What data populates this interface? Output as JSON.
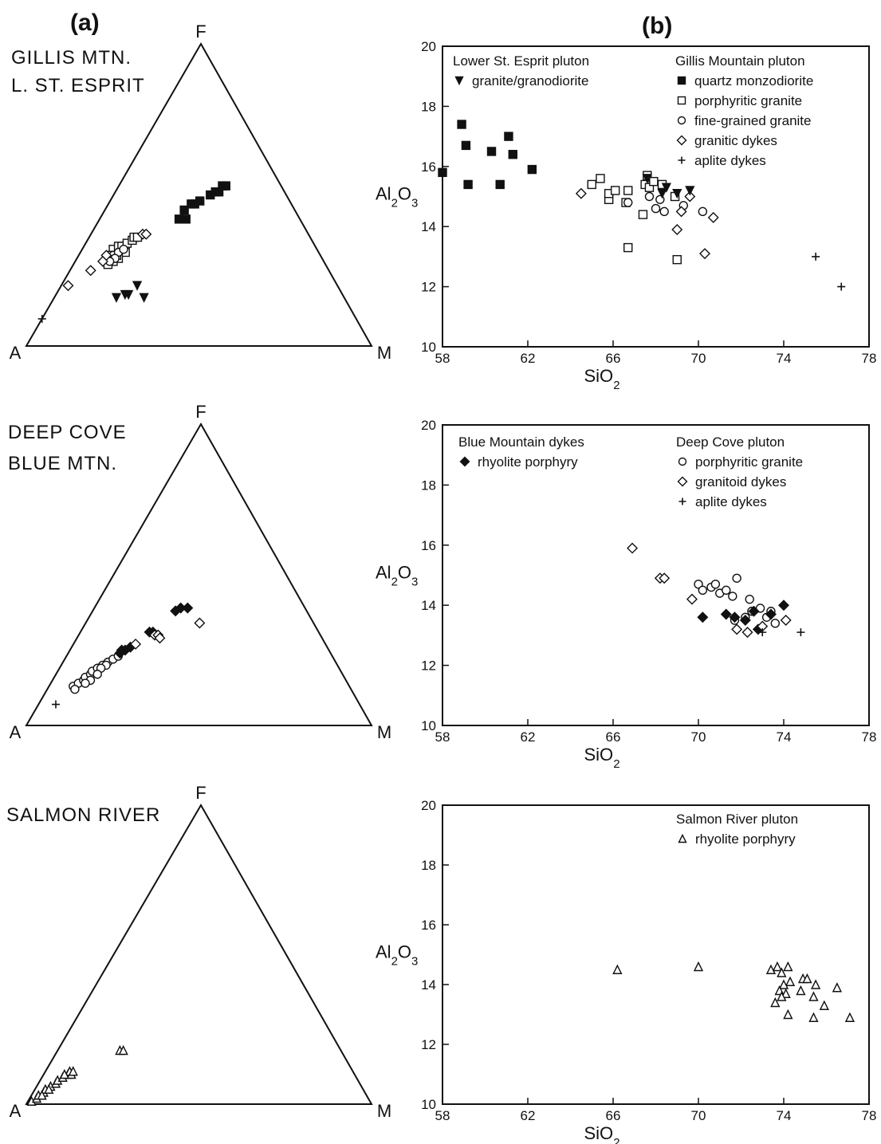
{
  "figure": {
    "panel_a_label": "(a)",
    "panel_b_label": "(b)"
  },
  "colors": {
    "ink": "#111111",
    "background": "#ffffff"
  },
  "chart_data": [
    {
      "type": "ternary",
      "title": "GILLIS MTN. L. ST. ESPRIT",
      "name_lines": [
        "GILLIS MTN.",
        "L. ST. ESPRIT"
      ],
      "apexes": {
        "top": "F",
        "left": "A",
        "right": "M"
      },
      "series": [
        {
          "marker": "filled-square",
          "points": [
            [
              0.25,
              0.42
            ],
            [
              0.23,
              0.42
            ],
            [
              0.23,
              0.45
            ],
            [
              0.24,
              0.47
            ],
            [
              0.25,
              0.47
            ],
            [
              0.26,
              0.48
            ],
            [
              0.28,
              0.5
            ],
            [
              0.29,
              0.51
            ],
            [
              0.3,
              0.51
            ],
            [
              0.3,
              0.53
            ],
            [
              0.31,
              0.53
            ]
          ]
        },
        {
          "marker": "open-square",
          "points": [
            [
              0.09,
              0.32
            ],
            [
              0.1,
              0.33
            ],
            [
              0.11,
              0.33
            ],
            [
              0.12,
              0.34
            ],
            [
              0.13,
              0.35
            ],
            [
              0.13,
              0.36
            ],
            [
              0.14,
              0.36
            ],
            [
              0.13,
              0.31
            ],
            [
              0.12,
              0.29
            ],
            [
              0.11,
              0.28
            ],
            [
              0.1,
              0.27
            ],
            [
              0.1,
              0.29
            ],
            [
              0.11,
              0.3
            ],
            [
              0.09,
              0.3
            ]
          ]
        },
        {
          "marker": "open-circle",
          "points": [
            [
              0.1,
              0.3
            ],
            [
              0.11,
              0.31
            ],
            [
              0.12,
              0.32
            ],
            [
              0.11,
              0.29
            ],
            [
              0.1,
              0.28
            ]
          ]
        },
        {
          "marker": "open-diamond",
          "points": [
            [
              0.06,
              0.25
            ],
            [
              0.02,
              0.2
            ],
            [
              0.08,
              0.3
            ],
            [
              0.08,
              0.28
            ],
            [
              0.15,
              0.37
            ],
            [
              0.16,
              0.37
            ]
          ]
        },
        {
          "marker": "filled-triangle-down",
          "points": [
            [
              0.18,
              0.16
            ],
            [
              0.2,
              0.17
            ],
            [
              0.21,
              0.17
            ],
            [
              0.22,
              0.2
            ],
            [
              0.26,
              0.16
            ]
          ]
        },
        {
          "marker": "plus",
          "points": [
            [
              0.0,
              0.09
            ]
          ]
        }
      ]
    },
    {
      "type": "scatter",
      "xlabel": "SiO2",
      "ylabel": "Al2O3",
      "xlim": [
        58,
        78
      ],
      "ylim": [
        10,
        20
      ],
      "xticks": [
        58,
        62,
        66,
        70,
        74,
        78
      ],
      "yticks": [
        10,
        12,
        14,
        16,
        18,
        20
      ],
      "legend_groups": [
        {
          "heading": "Lower St. Esprit pluton",
          "entries": [
            {
              "marker": "filled-triangle-down",
              "label": "granite/granodiorite"
            }
          ]
        },
        {
          "heading": "Gillis Mountain pluton",
          "entries": [
            {
              "marker": "filled-square",
              "label": "quartz monzodiorite"
            },
            {
              "marker": "open-square",
              "label": "porphyritic granite"
            },
            {
              "marker": "open-circle",
              "label": "fine-grained granite"
            },
            {
              "marker": "open-diamond",
              "label": "granitic dykes"
            },
            {
              "marker": "plus",
              "label": "aplite dykes"
            }
          ]
        }
      ],
      "series": [
        {
          "marker": "filled-square",
          "points": [
            [
              58.0,
              15.8
            ],
            [
              58.9,
              17.4
            ],
            [
              59.1,
              16.7
            ],
            [
              59.2,
              15.4
            ],
            [
              60.3,
              16.5
            ],
            [
              60.7,
              15.4
            ],
            [
              61.1,
              17.0
            ],
            [
              61.3,
              16.4
            ],
            [
              62.2,
              15.9
            ]
          ]
        },
        {
          "marker": "open-square",
          "points": [
            [
              65.0,
              15.4
            ],
            [
              65.4,
              15.6
            ],
            [
              65.8,
              14.9
            ],
            [
              65.8,
              15.1
            ],
            [
              66.1,
              15.2
            ],
            [
              66.6,
              14.8
            ],
            [
              66.7,
              15.2
            ],
            [
              66.7,
              13.3
            ],
            [
              67.4,
              14.4
            ],
            [
              67.5,
              15.4
            ],
            [
              67.6,
              15.7
            ],
            [
              67.7,
              15.3
            ],
            [
              67.9,
              15.5
            ],
            [
              68.3,
              15.4
            ],
            [
              68.9,
              15.0
            ],
            [
              69.0,
              12.9
            ]
          ]
        },
        {
          "marker": "open-circle",
          "points": [
            [
              66.7,
              14.8
            ],
            [
              67.7,
              15.0
            ],
            [
              68.0,
              14.6
            ],
            [
              68.2,
              14.9
            ],
            [
              68.4,
              14.5
            ],
            [
              69.3,
              14.7
            ],
            [
              70.2,
              14.5
            ]
          ]
        },
        {
          "marker": "open-diamond",
          "points": [
            [
              64.5,
              15.1
            ],
            [
              69.0,
              13.9
            ],
            [
              69.2,
              14.5
            ],
            [
              69.6,
              15.0
            ],
            [
              70.3,
              13.1
            ],
            [
              70.7,
              14.3
            ]
          ]
        },
        {
          "marker": "filled-triangle-down",
          "points": [
            [
              67.6,
              15.6
            ],
            [
              68.3,
              15.1
            ],
            [
              68.5,
              15.3
            ],
            [
              69.0,
              15.1
            ],
            [
              69.6,
              15.2
            ]
          ]
        },
        {
          "marker": "plus",
          "points": [
            [
              75.5,
              13.0
            ],
            [
              76.7,
              12.0
            ]
          ]
        }
      ]
    },
    {
      "type": "ternary",
      "title": "DEEP COVE BLUE MTN.",
      "name_lines": [
        "DEEP COVE",
        "BLUE MTN."
      ],
      "apexes": {
        "top": "F",
        "left": "A",
        "right": "M"
      },
      "series": [
        {
          "marker": "open-circle",
          "points": [
            [
              0.07,
              0.13
            ],
            [
              0.08,
              0.14
            ],
            [
              0.09,
              0.15
            ],
            [
              0.09,
              0.16
            ],
            [
              0.1,
              0.17
            ],
            [
              0.1,
              0.18
            ],
            [
              0.11,
              0.19
            ],
            [
              0.12,
              0.2
            ],
            [
              0.13,
              0.21
            ],
            [
              0.14,
              0.22
            ],
            [
              0.13,
              0.2
            ],
            [
              0.12,
              0.19
            ],
            [
              0.12,
              0.17
            ],
            [
              0.15,
              0.23
            ],
            [
              0.11,
              0.15
            ],
            [
              0.08,
              0.12
            ],
            [
              0.1,
              0.14
            ]
          ]
        },
        {
          "marker": "filled-diamond",
          "points": [
            [
              0.15,
              0.24
            ],
            [
              0.16,
              0.25
            ],
            [
              0.15,
              0.25
            ],
            [
              0.17,
              0.26
            ],
            [
              0.2,
              0.31
            ],
            [
              0.21,
              0.31
            ],
            [
              0.24,
              0.38
            ],
            [
              0.25,
              0.39
            ],
            [
              0.27,
              0.39
            ]
          ]
        },
        {
          "marker": "open-diamond",
          "points": [
            [
              0.22,
              0.3
            ],
            [
              0.23,
              0.3
            ],
            [
              0.24,
              0.29
            ],
            [
              0.33,
              0.34
            ],
            [
              0.18,
              0.27
            ]
          ]
        },
        {
          "marker": "plus",
          "points": [
            [
              0.05,
              0.07
            ]
          ]
        }
      ]
    },
    {
      "type": "scatter",
      "xlabel": "SiO2",
      "ylabel": "Al2O3",
      "xlim": [
        58,
        78
      ],
      "ylim": [
        10,
        20
      ],
      "xticks": [
        58,
        62,
        66,
        70,
        74,
        78
      ],
      "yticks": [
        10,
        12,
        14,
        16,
        18,
        20
      ],
      "legend_groups": [
        {
          "heading": "Blue Mountain dykes",
          "entries": [
            {
              "marker": "filled-diamond",
              "label": "rhyolite porphyry"
            }
          ]
        },
        {
          "heading": "Deep Cove pluton",
          "entries": [
            {
              "marker": "open-circle",
              "label": "porphyritic granite"
            },
            {
              "marker": "open-diamond",
              "label": "granitoid dykes"
            },
            {
              "marker": "plus",
              "label": "aplite dykes"
            }
          ]
        }
      ],
      "series": [
        {
          "marker": "open-circle",
          "points": [
            [
              70.0,
              14.7
            ],
            [
              70.2,
              14.5
            ],
            [
              70.6,
              14.6
            ],
            [
              70.8,
              14.7
            ],
            [
              71.0,
              14.4
            ],
            [
              71.3,
              14.5
            ],
            [
              71.6,
              14.3
            ],
            [
              71.8,
              14.9
            ],
            [
              72.4,
              14.2
            ],
            [
              72.5,
              13.8
            ],
            [
              72.9,
              13.9
            ],
            [
              73.2,
              13.6
            ],
            [
              73.6,
              13.4
            ],
            [
              73.4,
              13.8
            ],
            [
              72.2,
              13.6
            ],
            [
              71.7,
              13.5
            ]
          ]
        },
        {
          "marker": "filled-diamond",
          "points": [
            [
              70.2,
              13.6
            ],
            [
              71.3,
              13.7
            ],
            [
              71.7,
              13.6
            ],
            [
              72.2,
              13.5
            ],
            [
              72.8,
              13.2
            ],
            [
              73.4,
              13.7
            ],
            [
              74.0,
              14.0
            ],
            [
              72.6,
              13.8
            ]
          ]
        },
        {
          "marker": "open-diamond",
          "points": [
            [
              66.9,
              15.9
            ],
            [
              68.2,
              14.9
            ],
            [
              68.4,
              14.9
            ],
            [
              69.7,
              14.2
            ],
            [
              71.8,
              13.2
            ],
            [
              72.3,
              13.1
            ],
            [
              74.1,
              13.5
            ],
            [
              73.0,
              13.3
            ]
          ]
        },
        {
          "marker": "plus",
          "points": [
            [
              74.8,
              13.1
            ],
            [
              73.0,
              13.1
            ]
          ]
        }
      ]
    },
    {
      "type": "ternary",
      "title": "SALMON RIVER",
      "name_lines": [
        "SALMON RIVER"
      ],
      "apexes": {
        "top": "F",
        "left": "A",
        "right": "M"
      },
      "series": [
        {
          "marker": "open-triangle-up",
          "points": [
            [
              0.01,
              0.01
            ],
            [
              0.02,
              0.02
            ],
            [
              0.02,
              0.03
            ],
            [
              0.03,
              0.04
            ],
            [
              0.03,
              0.05
            ],
            [
              0.04,
              0.06
            ],
            [
              0.05,
              0.07
            ],
            [
              0.05,
              0.08
            ],
            [
              0.06,
              0.09
            ],
            [
              0.07,
              0.1
            ],
            [
              0.08,
              0.1
            ],
            [
              0.07,
              0.11
            ],
            [
              0.08,
              0.11
            ],
            [
              0.06,
              0.1
            ],
            [
              0.04,
              0.05
            ],
            [
              0.03,
              0.03
            ],
            [
              0.18,
              0.18
            ],
            [
              0.19,
              0.18
            ]
          ]
        }
      ]
    },
    {
      "type": "scatter",
      "xlabel": "SiO2",
      "ylabel": "Al2O3",
      "xlim": [
        58,
        78
      ],
      "ylim": [
        10,
        20
      ],
      "xticks": [
        58,
        62,
        66,
        70,
        74,
        78
      ],
      "yticks": [
        10,
        12,
        14,
        16,
        18,
        20
      ],
      "legend_groups": [
        {
          "heading": "Salmon River pluton",
          "entries": [
            {
              "marker": "open-triangle-up",
              "label": "rhyolite porphyry"
            }
          ]
        }
      ],
      "series": [
        {
          "marker": "open-triangle-up",
          "points": [
            [
              66.2,
              14.5
            ],
            [
              70.0,
              14.6
            ],
            [
              73.4,
              14.5
            ],
            [
              73.7,
              14.6
            ],
            [
              74.2,
              14.6
            ],
            [
              73.9,
              14.4
            ],
            [
              74.3,
              14.1
            ],
            [
              74.0,
              14.0
            ],
            [
              73.8,
              13.8
            ],
            [
              74.1,
              13.7
            ],
            [
              73.9,
              13.6
            ],
            [
              73.6,
              13.4
            ],
            [
              74.9,
              14.2
            ],
            [
              75.1,
              14.2
            ],
            [
              74.8,
              13.8
            ],
            [
              75.5,
              14.0
            ],
            [
              75.4,
              13.6
            ],
            [
              76.5,
              13.9
            ],
            [
              75.9,
              13.3
            ],
            [
              74.2,
              13.0
            ],
            [
              75.4,
              12.9
            ],
            [
              77.1,
              12.9
            ]
          ]
        }
      ]
    }
  ]
}
